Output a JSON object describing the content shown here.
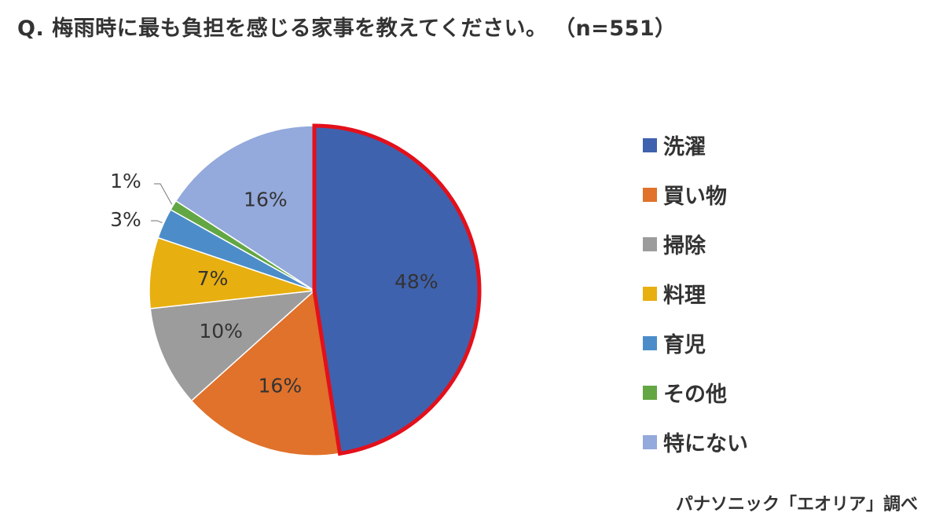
{
  "title": {
    "question": "Q. 梅雨時に最も負担を感じる家事を教えてください。",
    "sample_size": "（n=551）"
  },
  "source": "パナソニック「エオリア」調べ",
  "chart_data": {
    "type": "pie",
    "title": "Q. 梅雨時に最も負担を感じる家事を教えてください。",
    "sample_size": "n=551",
    "start_angle_deg": 0,
    "direction": "clockwise",
    "legend_position": "right",
    "slices": [
      {
        "label": "洗濯",
        "value": 48,
        "display": "48%",
        "color": "#3F62AE",
        "highlighted": true,
        "highlight_color": "#E3101B"
      },
      {
        "label": "買い物",
        "value": 16,
        "display": "16%",
        "color": "#E0722B"
      },
      {
        "label": "掃除",
        "value": 10,
        "display": "10%",
        "color": "#9C9C9C"
      },
      {
        "label": "料理",
        "value": 7,
        "display": "7%",
        "color": "#E8AF10"
      },
      {
        "label": "育児",
        "value": 3,
        "display": "3%",
        "color": "#4C8DC9"
      },
      {
        "label": "その他",
        "value": 1,
        "display": "1%",
        "color": "#62A744"
      },
      {
        "label": "特にない",
        "value": 16,
        "display": "16%",
        "color": "#94A9DC"
      }
    ]
  }
}
